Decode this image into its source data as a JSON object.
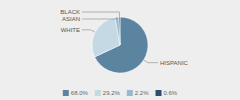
{
  "chart_data": {
    "type": "pie",
    "categories": [
      "HISPANIC",
      "WHITE",
      "ASIAN",
      "BLACK"
    ],
    "values": [
      68.0,
      29.2,
      2.2,
      0.6
    ],
    "value_labels": [
      "68.0%",
      "29.2%",
      "2.2%",
      "0.6%"
    ],
    "colors": [
      "#5b84a0",
      "#c5d9e4",
      "#9ab8cb",
      "#2d4f6b"
    ],
    "legend": "bottom"
  }
}
